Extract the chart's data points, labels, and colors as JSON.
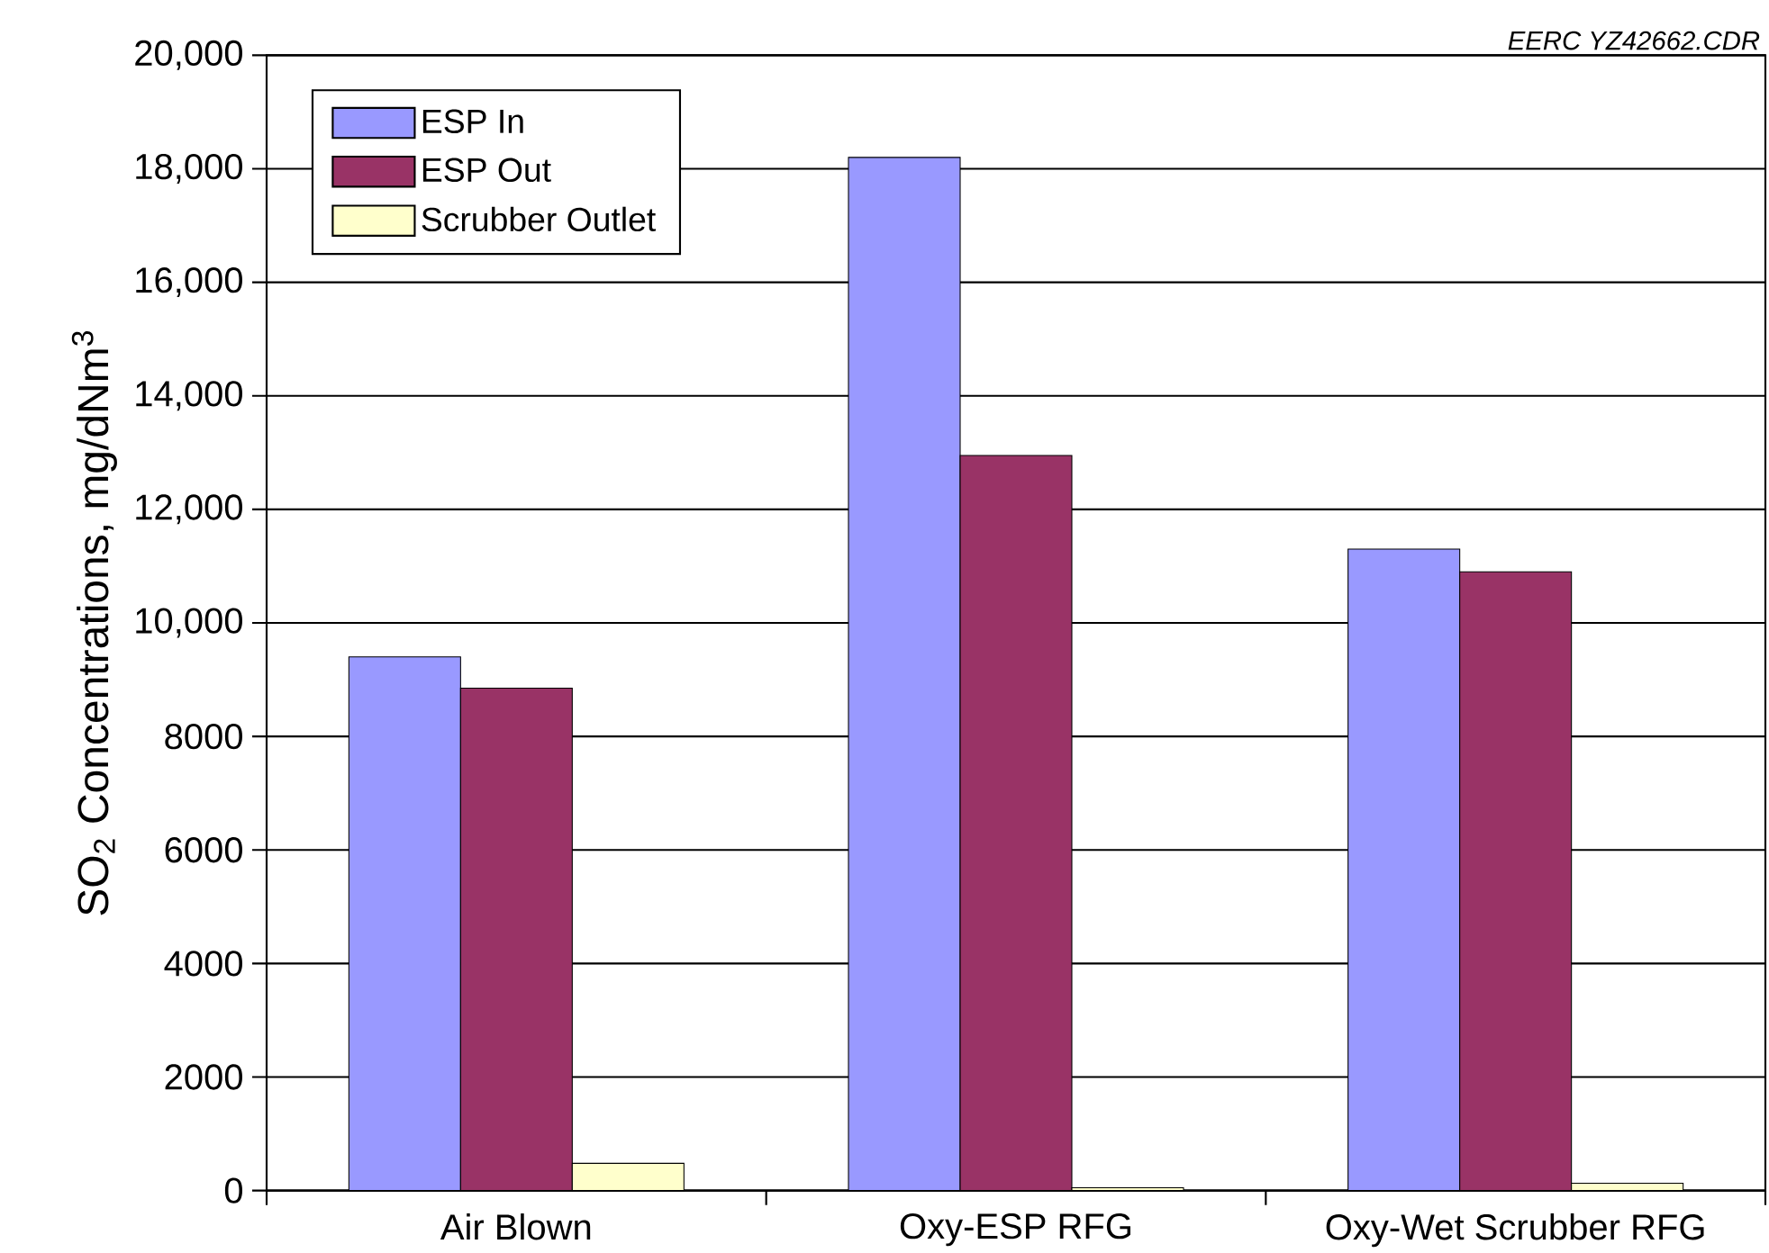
{
  "chart_data": {
    "type": "bar",
    "ylabel": "SO$_{2}$ Concentrations, mg/dNm$^{3}$",
    "categories": [
      "Air Blown",
      "Oxy-ESP RFG",
      "Oxy-Wet Scrubber RFG"
    ],
    "series": [
      {
        "name": "ESP In",
        "color": "#9999ff",
        "values": [
          9400,
          18200,
          11300
        ]
      },
      {
        "name": "ESP Out",
        "color": "#993366",
        "values": [
          8850,
          12950,
          10900
        ]
      },
      {
        "name": "Scrubber Outlet",
        "color": "#ffffcc",
        "values": [
          480,
          50,
          130
        ]
      }
    ],
    "ylim": [
      0,
      20000
    ],
    "yticks": [
      0,
      2000,
      4000,
      6000,
      8000,
      {
        "value": 10000,
        "label": "10,000"
      },
      {
        "value": 12000,
        "label": "12,000"
      },
      {
        "value": 14000,
        "label": "14,000"
      },
      {
        "value": 16000,
        "label": "16,000"
      },
      {
        "value": 18000,
        "label": "18,000"
      },
      {
        "value": 20000,
        "label": "20,000"
      }
    ],
    "grid": "y",
    "legend": "top left",
    "annotations": [
      "EERC YZ42662.CDR"
    ]
  }
}
